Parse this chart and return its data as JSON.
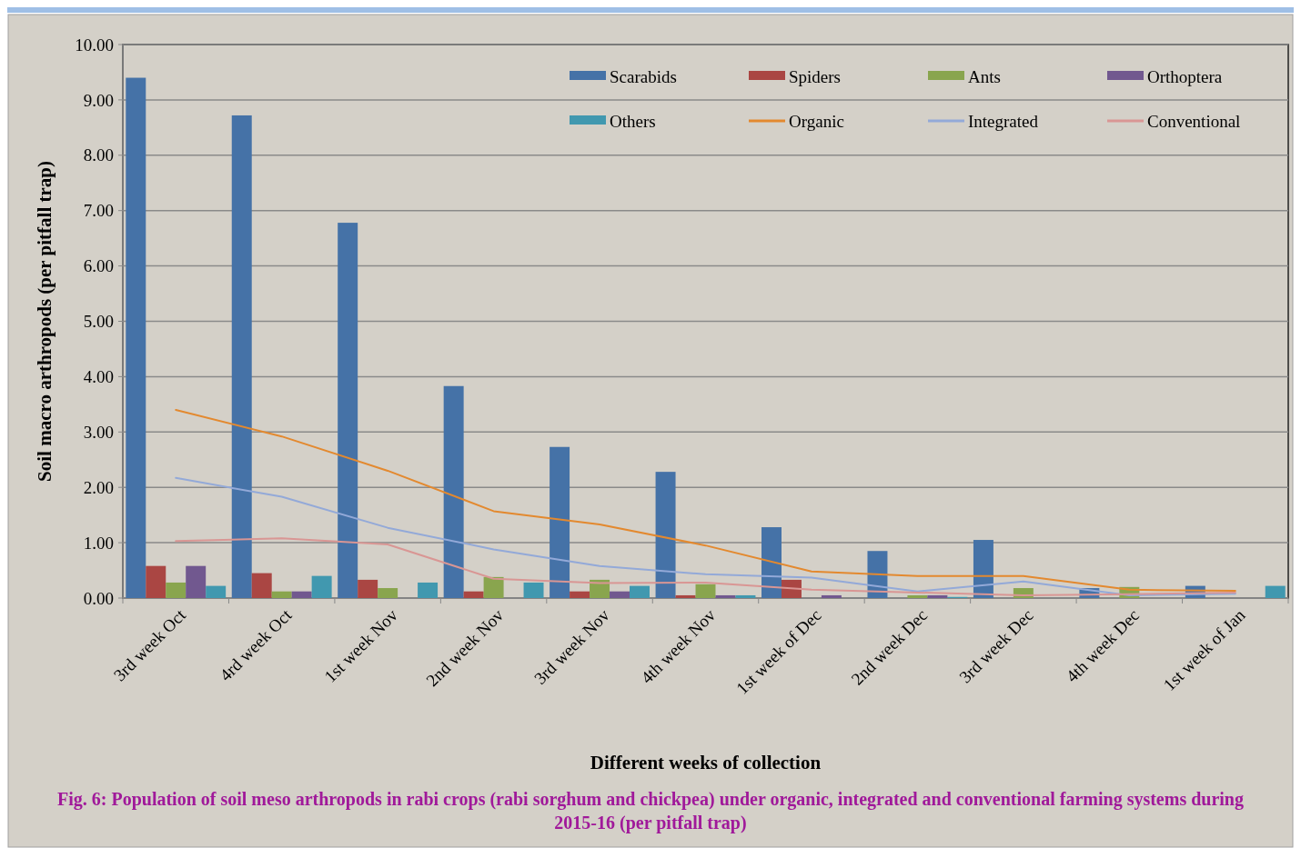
{
  "chart_data": {
    "type": "bar",
    "xlabel": "Different weeks of collection",
    "ylabel": "Soil macro  arthropods (per pitfall trap)",
    "annotations": [
      "Fig. 6: Population  of soil meso arthropods  in rabi crops (rabi sorghum  and chickpea) under organic, integrated  and conventional farming systems during 2015-16 (per pitfall trap)"
    ],
    "categories": [
      "3rd week Oct",
      "4rd week Oct",
      "1st week Nov",
      "2nd week Nov",
      "3rd week Nov",
      "4th week Nov",
      "1st week of Dec",
      "2nd week Dec",
      "3rd week Dec",
      "4th week Dec",
      "1st week of Jan"
    ],
    "series": [
      {
        "name": "Scarabids",
        "color": "#4572a7",
        "values": [
          9.4,
          8.72,
          6.78,
          3.83,
          2.73,
          2.28,
          1.28,
          0.85,
          1.05,
          0.18,
          0.22
        ]
      },
      {
        "name": "Spiders",
        "color": "#aa4643",
        "values": [
          0.58,
          0.45,
          0.33,
          0.12,
          0.12,
          0.05,
          0.33,
          0,
          0,
          0,
          0
        ]
      },
      {
        "name": "Ants",
        "color": "#89a54e",
        "values": [
          0.28,
          0.12,
          0.18,
          0.38,
          0.33,
          0.25,
          0,
          0.05,
          0.18,
          0.2,
          0
        ]
      },
      {
        "name": "Orthoptera",
        "color": "#71588f",
        "values": [
          0.58,
          0.12,
          0,
          0,
          0.12,
          0.05,
          0.05,
          0.05,
          0,
          0,
          0
        ]
      },
      {
        "name": "Others",
        "color": "#4198af",
        "values": [
          0.22,
          0.4,
          0.28,
          0.28,
          0.22,
          0.05,
          0,
          0.02,
          0,
          0,
          0.22
        ]
      },
      {
        "name": "Organic",
        "type": "line",
        "color": "#e3892f",
        "values": [
          3.4,
          2.92,
          2.3,
          1.57,
          1.33,
          0.95,
          0.48,
          0.4,
          0.4,
          0.15,
          0.13
        ]
      },
      {
        "name": "Integrated",
        "type": "line",
        "color": "#93a9d8",
        "values": [
          2.17,
          1.83,
          1.27,
          0.88,
          0.58,
          0.43,
          0.37,
          0.12,
          0.3,
          0.05,
          0.08
        ]
      },
      {
        "name": "Conventional",
        "type": "line",
        "color": "#d99694",
        "values": [
          1.03,
          1.08,
          0.97,
          0.35,
          0.27,
          0.28,
          0.15,
          0.1,
          0.05,
          0.07,
          0.1
        ]
      }
    ],
    "ylim": [
      0,
      10
    ],
    "yticks": [
      {
        "value": 0,
        "label": "0.00"
      },
      {
        "value": 1,
        "label": "1.00"
      },
      {
        "value": 2,
        "label": "2.00"
      },
      {
        "value": 3,
        "label": "3.00"
      },
      {
        "value": 4,
        "label": "4.00"
      },
      {
        "value": 5,
        "label": "5.00"
      },
      {
        "value": 6,
        "label": "6.00"
      },
      {
        "value": 7,
        "label": "7.00"
      },
      {
        "value": 8,
        "label": "8.00"
      },
      {
        "value": 9,
        "label": "9.00"
      },
      {
        "value": 10,
        "label": "10.00"
      }
    ],
    "grid": "y",
    "legend": "top right"
  }
}
